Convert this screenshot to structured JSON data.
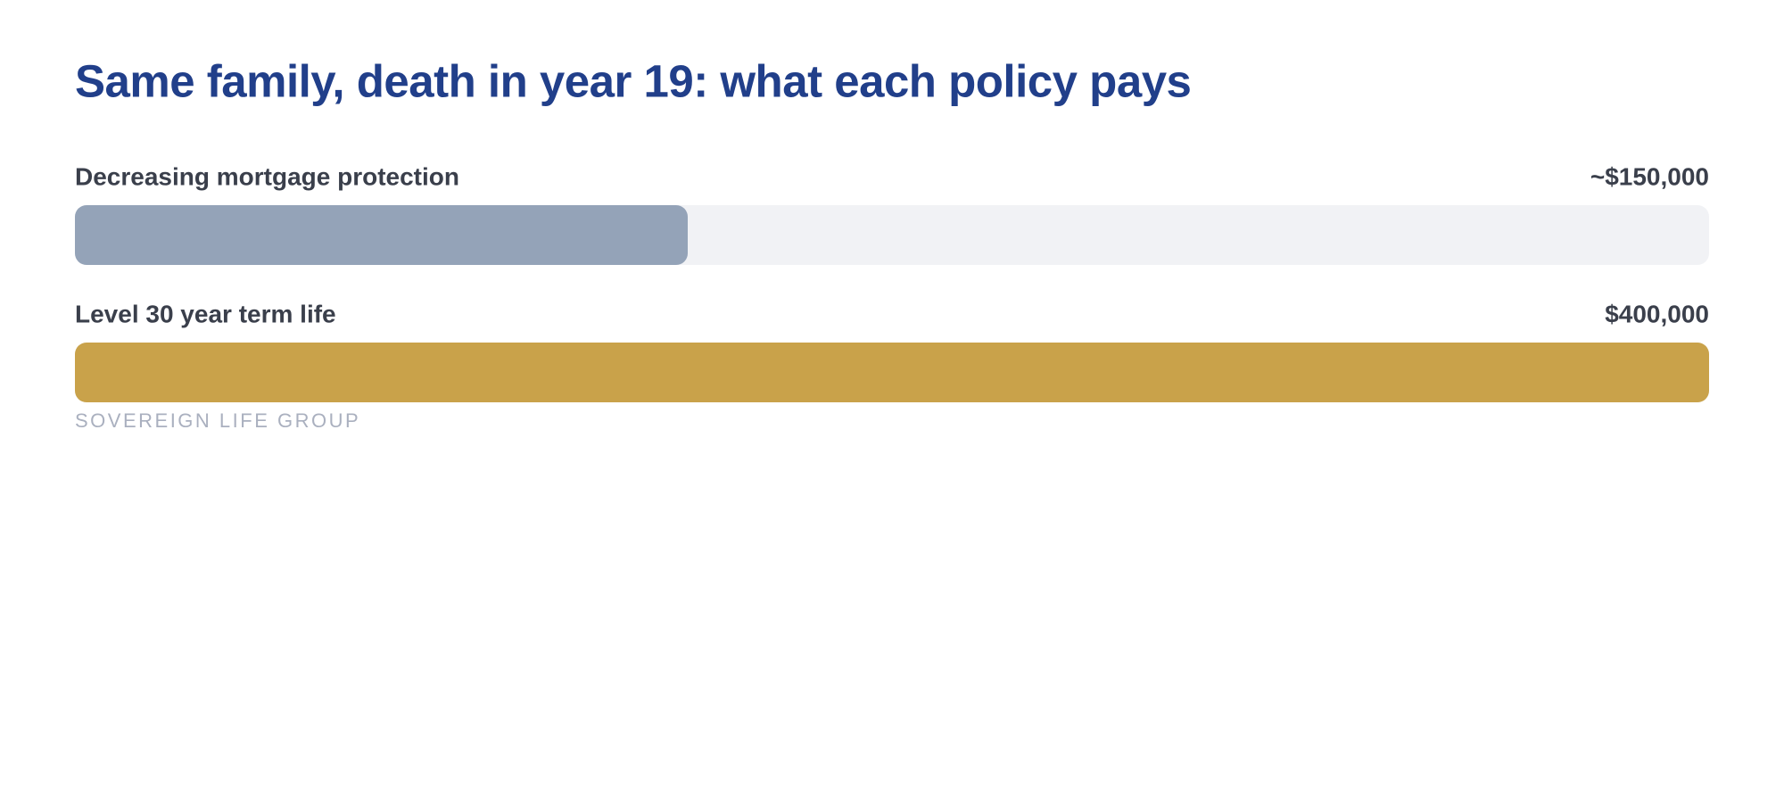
{
  "chart_data": {
    "type": "bar",
    "orientation": "horizontal",
    "title": "Same family, death in year 19: what each policy pays",
    "categories": [
      "Decreasing mortgage protection",
      "Level 30 year term life"
    ],
    "values": [
      150000,
      400000
    ],
    "value_labels": [
      "~$150,000",
      "$400,000"
    ],
    "colors": [
      "#94a3b8",
      "#c9a24a"
    ],
    "xlim": [
      0,
      400000
    ],
    "footer": "SOVEREIGN LIFE GROUP"
  }
}
